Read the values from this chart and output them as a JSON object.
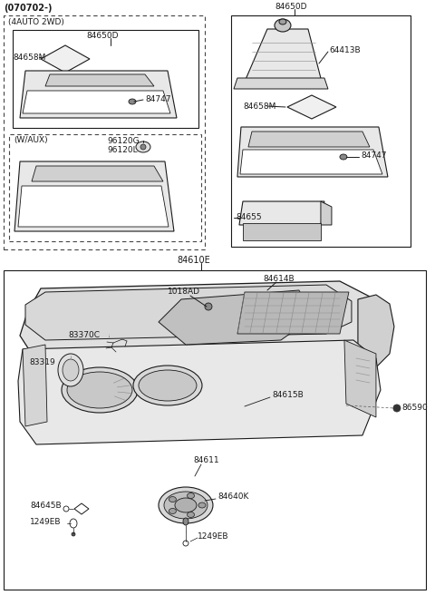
{
  "bg_color": "#ffffff",
  "line_color": "#1a1a1a",
  "text_color": "#1a1a1a",
  "fig_width": 4.8,
  "fig_height": 6.56,
  "dpi": 100,
  "header": "(070702-)",
  "label_4auto": "(4AUTO 2WD)",
  "label_waux": "(W/AUX)",
  "parts": {
    "84650D_left": "84650D",
    "84658M_left": "84658M",
    "84747_left": "84747",
    "96120G": "96120G",
    "96120L": "96120L",
    "84650D_right": "84650D",
    "64413B": "64413B",
    "84658M_right": "84658M",
    "84747_right": "84747",
    "84655": "84655",
    "84610E": "84610E",
    "84614B": "84614B",
    "1018AD": "1018AD",
    "83370C": "83370C",
    "83319": "83319",
    "84615B": "84615B",
    "86590": "86590",
    "84611": "84611",
    "84640K": "84640K",
    "84645B": "84645B",
    "1249EB_left": "1249EB",
    "1249EB_center": "1249EB"
  }
}
